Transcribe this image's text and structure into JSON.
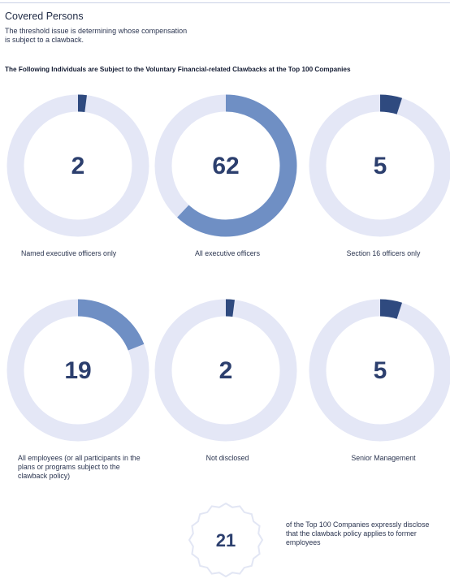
{
  "header": {
    "title": "Covered Persons",
    "description": "The threshold issue is determining whose compensation is subject to a clawback."
  },
  "colors": {
    "track": "#e4e7f6",
    "dark": "#2f4a7f",
    "medium": "#6f8fc4",
    "number": "#2c3f6e"
  },
  "chart_data": {
    "type": "donut",
    "title": "The Following Individuals are Subject to the Voluntary Financial-related Clawbacks at the Top 100 Companies",
    "total": 100,
    "items": [
      {
        "label": "Named executive officers only",
        "value": 2,
        "display": "2"
      },
      {
        "label": "All executive officers",
        "value": 62,
        "display": "62"
      },
      {
        "label": "Section 16 officers only",
        "value": 5,
        "display": "5"
      },
      {
        "label": "All employees (or all participants in the plans or programs subject to the clawback policy)",
        "value": 19,
        "display": "19"
      },
      {
        "label": "Not disclosed",
        "value": 2,
        "display": "2"
      },
      {
        "label": "Senior Management",
        "value": 5,
        "display": "5"
      }
    ]
  },
  "badge": {
    "value": "21",
    "text": "of the Top 100 Companies expressly disclose that the clawback policy applies to former employees"
  }
}
